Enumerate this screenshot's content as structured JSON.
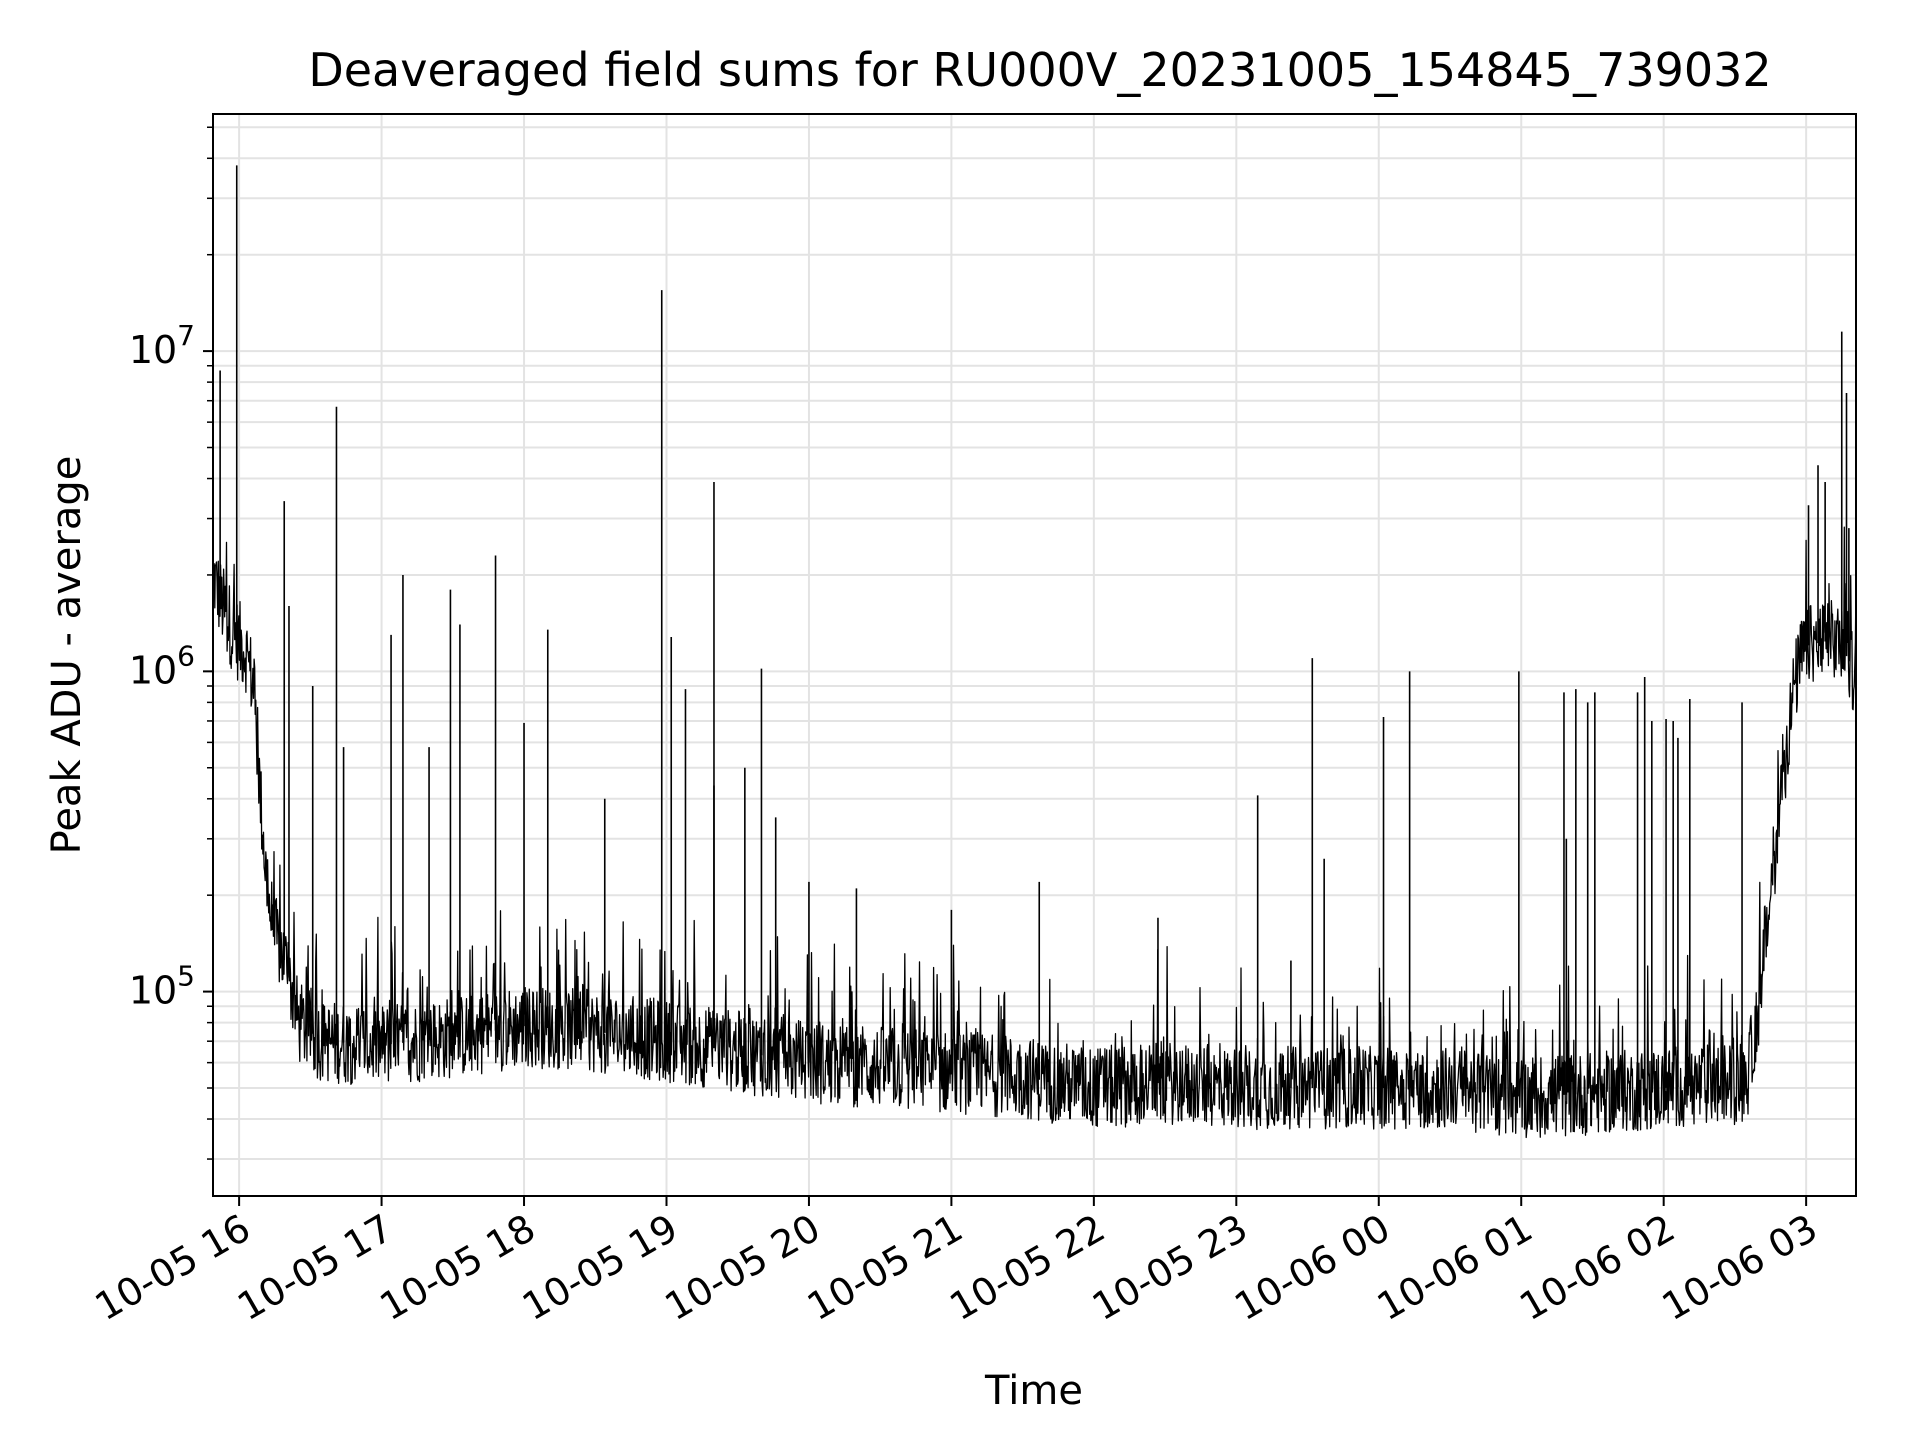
{
  "chart_data": {
    "type": "line",
    "title": "Deaveraged field sums for RU000V_20231005_154845_739032",
    "xlabel": "Time",
    "ylabel": "Peak ADU - average",
    "y_scale": "log",
    "grid": true,
    "xlim": [
      "2023-10-05 15:49",
      "2023-10-06 03:21"
    ],
    "ylim": [
      23000,
      55000000
    ],
    "x_ticks": [
      {
        "time": "2023-10-05 16:00",
        "label": "10-05 16"
      },
      {
        "time": "2023-10-05 17:00",
        "label": "10-05 17"
      },
      {
        "time": "2023-10-05 18:00",
        "label": "10-05 18"
      },
      {
        "time": "2023-10-05 19:00",
        "label": "10-05 19"
      },
      {
        "time": "2023-10-05 20:00",
        "label": "10-05 20"
      },
      {
        "time": "2023-10-05 21:00",
        "label": "10-05 21"
      },
      {
        "time": "2023-10-05 22:00",
        "label": "10-05 22"
      },
      {
        "time": "2023-10-05 23:00",
        "label": "10-05 23"
      },
      {
        "time": "2023-10-06 00:00",
        "label": "10-06 00"
      },
      {
        "time": "2023-10-06 01:00",
        "label": "10-06 01"
      },
      {
        "time": "2023-10-06 02:00",
        "label": "10-06 02"
      },
      {
        "time": "2023-10-06 03:00",
        "label": "10-06 03"
      }
    ],
    "y_ticks": [
      {
        "value": 100000,
        "base": "10",
        "exp": "5"
      },
      {
        "value": 1000000,
        "base": "10",
        "exp": "6"
      },
      {
        "value": 10000000,
        "base": "10",
        "exp": "7"
      }
    ],
    "series": [
      {
        "color": "#000000",
        "baseline": [
          [
            "2023-10-05 15:49",
            2000000
          ],
          [
            "2023-10-05 15:53",
            1600000
          ],
          [
            "2023-10-05 15:58",
            1300000
          ],
          [
            "2023-10-05 16:03",
            1150000
          ],
          [
            "2023-10-05 16:06",
            900000
          ],
          [
            "2023-10-05 16:09",
            400000
          ],
          [
            "2023-10-05 16:12",
            200000
          ],
          [
            "2023-10-05 16:15",
            150000
          ],
          [
            "2023-10-05 16:20",
            120000
          ],
          [
            "2023-10-05 16:25",
            80000
          ],
          [
            "2023-10-05 16:35",
            70000
          ],
          [
            "2023-10-05 17:00",
            68000
          ],
          [
            "2023-10-05 17:30",
            72000
          ],
          [
            "2023-10-05 18:00",
            78000
          ],
          [
            "2023-10-05 18:30",
            75000
          ],
          [
            "2023-10-05 19:00",
            70000
          ],
          [
            "2023-10-05 19:30",
            65000
          ],
          [
            "2023-10-05 20:00",
            60000
          ],
          [
            "2023-10-05 20:30",
            58000
          ],
          [
            "2023-10-05 21:00",
            56000
          ],
          [
            "2023-10-05 21:30",
            54000
          ],
          [
            "2023-10-05 22:00",
            50000
          ],
          [
            "2023-10-05 22:30",
            52000
          ],
          [
            "2023-10-05 23:00",
            50000
          ],
          [
            "2023-10-05 23:30",
            50000
          ],
          [
            "2023-10-06 00:00",
            50000
          ],
          [
            "2023-10-06 00:30",
            50000
          ],
          [
            "2023-10-06 01:00",
            47000
          ],
          [
            "2023-10-06 01:30",
            48000
          ],
          [
            "2023-10-06 02:00",
            50000
          ],
          [
            "2023-10-06 02:35",
            52000
          ],
          [
            "2023-10-06 02:40",
            90000
          ],
          [
            "2023-10-06 02:45",
            200000
          ],
          [
            "2023-10-06 02:50",
            450000
          ],
          [
            "2023-10-06 02:55",
            900000
          ],
          [
            "2023-10-06 02:58",
            1100000
          ],
          [
            "2023-10-06 03:00",
            1200000
          ],
          [
            "2023-10-06 03:10",
            1250000
          ],
          [
            "2023-10-06 03:15",
            1200000
          ],
          [
            "2023-10-06 03:20",
            1000000
          ]
        ],
        "spikes": [
          [
            "2023-10-05 15:59",
            38000000
          ],
          [
            "2023-10-05 15:52",
            8700000
          ],
          [
            "2023-10-05 16:19",
            3400000
          ],
          [
            "2023-10-05 16:21",
            1600000
          ],
          [
            "2023-10-05 16:31",
            900000
          ],
          [
            "2023-10-05 16:41",
            6700000
          ],
          [
            "2023-10-05 16:44",
            580000
          ],
          [
            "2023-10-05 17:04",
            1300000
          ],
          [
            "2023-10-05 17:09",
            2000000
          ],
          [
            "2023-10-05 17:20",
            580000
          ],
          [
            "2023-10-05 17:29",
            1800000
          ],
          [
            "2023-10-05 17:33",
            1400000
          ],
          [
            "2023-10-05 17:48",
            2300000
          ],
          [
            "2023-10-05 18:00",
            690000
          ],
          [
            "2023-10-05 18:10",
            1350000
          ],
          [
            "2023-10-05 18:34",
            400000
          ],
          [
            "2023-10-05 18:58",
            15500000
          ],
          [
            "2023-10-05 19:02",
            1280000
          ],
          [
            "2023-10-05 19:08",
            880000
          ],
          [
            "2023-10-05 19:20",
            440000
          ],
          [
            "2023-10-05 19:20",
            3900000
          ],
          [
            "2023-10-05 19:33",
            500000
          ],
          [
            "2023-10-05 19:40",
            1020000
          ],
          [
            "2023-10-05 19:46",
            350000
          ],
          [
            "2023-10-05 20:00",
            220000
          ],
          [
            "2023-10-05 20:20",
            210000
          ],
          [
            "2023-10-05 21:00",
            180000
          ],
          [
            "2023-10-05 21:37",
            220000
          ],
          [
            "2023-10-05 22:27",
            170000
          ],
          [
            "2023-10-05 23:09",
            410000
          ],
          [
            "2023-10-05 23:23",
            125000
          ],
          [
            "2023-10-05 23:32",
            1100000
          ],
          [
            "2023-10-05 23:37",
            260000
          ],
          [
            "2023-10-06 00:02",
            720000
          ],
          [
            "2023-10-06 00:13",
            1000000
          ],
          [
            "2023-10-06 00:59",
            1000000
          ],
          [
            "2023-10-06 01:18",
            860000
          ],
          [
            "2023-10-06 01:19",
            300000
          ],
          [
            "2023-10-06 01:23",
            880000
          ],
          [
            "2023-10-06 01:28",
            800000
          ],
          [
            "2023-10-06 01:31",
            860000
          ],
          [
            "2023-10-06 01:49",
            860000
          ],
          [
            "2023-10-06 01:52",
            960000
          ],
          [
            "2023-10-06 01:55",
            700000
          ],
          [
            "2023-10-06 02:01",
            710000
          ],
          [
            "2023-10-06 02:04",
            700000
          ],
          [
            "2023-10-06 02:06",
            620000
          ],
          [
            "2023-10-06 02:11",
            820000
          ],
          [
            "2023-10-06 02:33",
            800000
          ],
          [
            "2023-10-06 03:01",
            3300000
          ],
          [
            "2023-10-06 03:05",
            4400000
          ],
          [
            "2023-10-06 03:08",
            3900000
          ],
          [
            "2023-10-06 03:15",
            11500000
          ],
          [
            "2023-10-06 03:17",
            7400000
          ],
          [
            "2023-10-06 03:18",
            2800000
          ]
        ]
      }
    ]
  }
}
